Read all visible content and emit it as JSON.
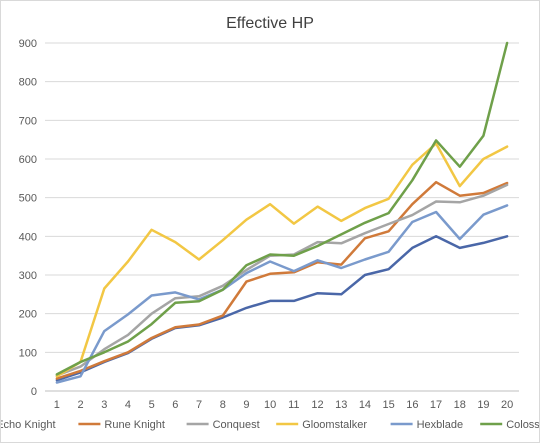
{
  "chart_data": {
    "type": "line",
    "title": "Effective HP",
    "xlabel": "",
    "ylabel": "",
    "x": [
      1,
      2,
      3,
      4,
      5,
      6,
      7,
      8,
      9,
      10,
      11,
      12,
      13,
      14,
      15,
      16,
      17,
      18,
      19,
      20
    ],
    "ylim": [
      0,
      900
    ],
    "yticks": [
      0,
      100,
      200,
      300,
      400,
      500,
      600,
      700,
      800,
      900
    ],
    "grid": true,
    "legend_position": "bottom",
    "series": [
      {
        "name": "Echo Knight",
        "color": "#4a67a8",
        "values": [
          28,
          48,
          75,
          98,
          135,
          163,
          170,
          190,
          215,
          233,
          233,
          253,
          250,
          300,
          315,
          370,
          400,
          370,
          383,
          400
        ]
      },
      {
        "name": "Rune Knight",
        "color": "#d07a3a",
        "values": [
          32,
          52,
          77,
          100,
          137,
          165,
          172,
          195,
          283,
          303,
          307,
          333,
          327,
          395,
          413,
          483,
          540,
          505,
          512,
          538
        ]
      },
      {
        "name": "Conquest",
        "color": "#a5a5a5",
        "values": [
          40,
          63,
          108,
          145,
          200,
          240,
          245,
          272,
          313,
          350,
          353,
          385,
          382,
          408,
          432,
          455,
          490,
          488,
          505,
          533
        ]
      },
      {
        "name": "Gloomstalker",
        "color": "#f2c744",
        "values": [
          38,
          75,
          265,
          335,
          417,
          385,
          340,
          390,
          443,
          483,
          433,
          477,
          440,
          473,
          497,
          585,
          640,
          530,
          600,
          632
        ]
      },
      {
        "name": "Hexblade",
        "color": "#7a9acc",
        "values": [
          22,
          38,
          155,
          198,
          247,
          255,
          237,
          262,
          305,
          335,
          310,
          338,
          318,
          340,
          360,
          437,
          463,
          393,
          456,
          480
        ]
      },
      {
        "name": "Colossus",
        "color": "#6fa04a",
        "values": [
          43,
          75,
          100,
          128,
          173,
          228,
          232,
          262,
          325,
          353,
          350,
          375,
          405,
          435,
          460,
          545,
          648,
          580,
          660,
          900
        ]
      }
    ]
  }
}
